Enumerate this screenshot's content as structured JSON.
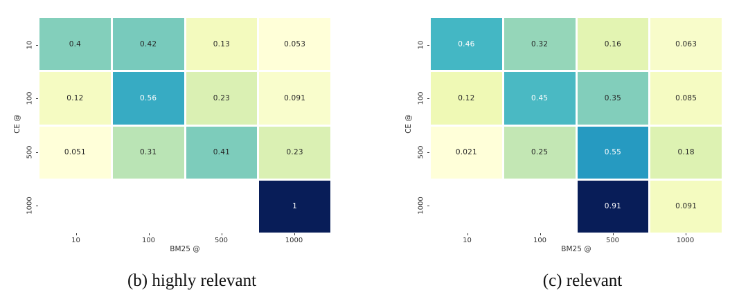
{
  "figure": {
    "background": "#ffffff",
    "colormap": {
      "name": "YlGnBu",
      "anchors": [
        "#ffffd9",
        "#edf8b1",
        "#c7e9b4",
        "#7fcdbb",
        "#41b6c4",
        "#1d91c0",
        "#225ea8",
        "#253494",
        "#081d58"
      ]
    },
    "annotation_text_dark": "#262626",
    "annotation_text_light": "#ffffff",
    "tick_color": "#333333",
    "masked_cell_color": "#ffffff"
  },
  "chart_data": [
    {
      "type": "heatmap",
      "caption": "(b) highly relevant",
      "xlabel": "BM25 @",
      "ylabel": "CE @",
      "x_ticks": [
        "10",
        "100",
        "500",
        "1000"
      ],
      "y_ticks": [
        "10",
        "100",
        "500",
        "1000"
      ],
      "values": [
        [
          0.4,
          0.42,
          0.13,
          0.053
        ],
        [
          0.12,
          0.56,
          0.23,
          0.091
        ],
        [
          0.051,
          0.31,
          0.41,
          0.23
        ],
        [
          null,
          null,
          null,
          1
        ]
      ],
      "legend": "none",
      "grid_lines": "white cell gaps"
    },
    {
      "type": "heatmap",
      "caption": "(c) relevant",
      "xlabel": "BM25 @",
      "ylabel": "CE @",
      "x_ticks": [
        "10",
        "100",
        "500",
        "1000"
      ],
      "y_ticks": [
        "10",
        "100",
        "500",
        "1000"
      ],
      "values": [
        [
          0.46,
          0.32,
          0.16,
          0.063
        ],
        [
          0.12,
          0.45,
          0.35,
          0.085
        ],
        [
          0.021,
          0.25,
          0.55,
          0.18
        ],
        [
          null,
          null,
          0.91,
          0.091
        ]
      ],
      "legend": "none",
      "grid_lines": "white cell gaps"
    }
  ]
}
